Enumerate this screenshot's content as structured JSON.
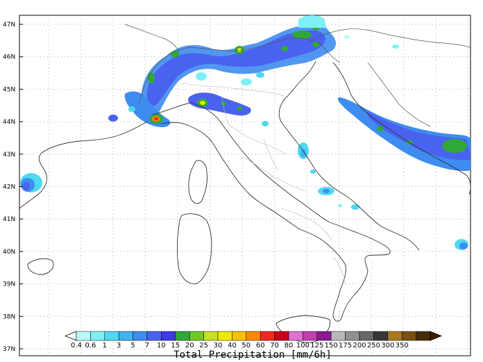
{
  "map": {
    "title": "Total Precipitation [mm/6h]",
    "latitudes": [
      "47N",
      "46N",
      "45N",
      "44N",
      "43N",
      "42N",
      "41N",
      "40N",
      "39N",
      "38N",
      "37N"
    ]
  },
  "colorbar": {
    "labels": [
      "0.4",
      "0.6",
      "1",
      "3",
      "5",
      "7",
      "10",
      "15",
      "20",
      "25",
      "30",
      "40",
      "50",
      "60",
      "70",
      "80",
      "100",
      "125",
      "150",
      "175",
      "200",
      "250",
      "300",
      "350"
    ],
    "colors": [
      "#b8fafa",
      "#7ef0f5",
      "#4fd8f0",
      "#3fb2f0",
      "#3e8cf0",
      "#4a62f0",
      "#4038e8",
      "#30a838",
      "#70c828",
      "#c8e020",
      "#f0e800",
      "#f8c000",
      "#f88800",
      "#f02820",
      "#c80018",
      "#e070d0",
      "#c040b0",
      "#8a1a90",
      "#b8b8b8",
      "#909090",
      "#686868",
      "#383838",
      "#a87820",
      "#7a4e14",
      "#4a2a08"
    ]
  }
}
